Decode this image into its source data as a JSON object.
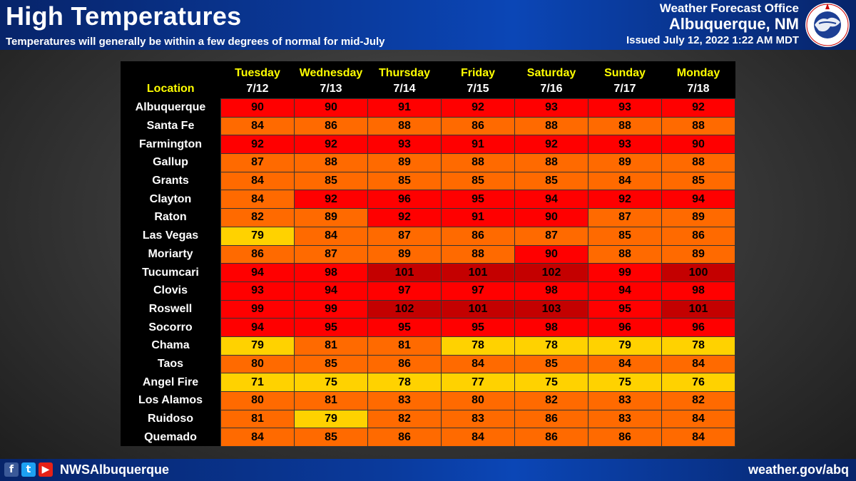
{
  "header": {
    "title": "High Temperatures",
    "subtitle": "Temperatures will generally be within a few degrees of normal for mid-July",
    "office_line1": "Weather Forecast Office",
    "office_line2": "Albuquerque, NM",
    "issued": "Issued July 12, 2022 1:22 AM MDT",
    "logo_text": "NATIONAL WEATHER SERVICE"
  },
  "footer": {
    "handle": "NWSAlbuquerque",
    "website": "weather.gov/abq"
  },
  "colors": {
    "yellow": "#ffd200",
    "orange": "#ff6a00",
    "red": "#ff0000",
    "dark_red": "#c40000"
  },
  "table": {
    "location_header": "Location",
    "days": [
      {
        "day": "Tuesday",
        "date": "7/12"
      },
      {
        "day": "Wednesday",
        "date": "7/13"
      },
      {
        "day": "Thursday",
        "date": "7/14"
      },
      {
        "day": "Friday",
        "date": "7/15"
      },
      {
        "day": "Saturday",
        "date": "7/16"
      },
      {
        "day": "Sunday",
        "date": "7/17"
      },
      {
        "day": "Monday",
        "date": "7/18"
      }
    ],
    "rows": [
      {
        "location": "Albuquerque",
        "temps": [
          90,
          90,
          91,
          92,
          93,
          93,
          92
        ]
      },
      {
        "location": "Santa Fe",
        "temps": [
          84,
          86,
          88,
          86,
          88,
          88,
          88
        ]
      },
      {
        "location": "Farmington",
        "temps": [
          92,
          92,
          93,
          91,
          92,
          93,
          90
        ]
      },
      {
        "location": "Gallup",
        "temps": [
          87,
          88,
          89,
          88,
          88,
          89,
          88
        ]
      },
      {
        "location": "Grants",
        "temps": [
          84,
          85,
          85,
          85,
          85,
          84,
          85
        ]
      },
      {
        "location": "Clayton",
        "temps": [
          84,
          92,
          96,
          95,
          94,
          92,
          94
        ]
      },
      {
        "location": "Raton",
        "temps": [
          82,
          89,
          92,
          91,
          90,
          87,
          89
        ]
      },
      {
        "location": "Las Vegas",
        "temps": [
          79,
          84,
          87,
          86,
          87,
          85,
          86
        ]
      },
      {
        "location": "Moriarty",
        "temps": [
          86,
          87,
          89,
          88,
          90,
          88,
          89
        ]
      },
      {
        "location": "Tucumcari",
        "temps": [
          94,
          98,
          101,
          101,
          102,
          99,
          100
        ]
      },
      {
        "location": "Clovis",
        "temps": [
          93,
          94,
          97,
          97,
          98,
          94,
          98
        ]
      },
      {
        "location": "Roswell",
        "temps": [
          99,
          99,
          102,
          101,
          103,
          95,
          101
        ]
      },
      {
        "location": "Socorro",
        "temps": [
          94,
          95,
          95,
          95,
          98,
          96,
          96
        ]
      },
      {
        "location": "Chama",
        "temps": [
          79,
          81,
          81,
          78,
          78,
          79,
          78
        ]
      },
      {
        "location": "Taos",
        "temps": [
          80,
          85,
          86,
          84,
          85,
          84,
          84
        ]
      },
      {
        "location": "Angel Fire",
        "temps": [
          71,
          75,
          78,
          77,
          75,
          75,
          76
        ]
      },
      {
        "location": "Los Alamos",
        "temps": [
          80,
          81,
          83,
          80,
          82,
          83,
          82
        ]
      },
      {
        "location": "Ruidoso",
        "temps": [
          81,
          79,
          82,
          83,
          86,
          83,
          84
        ]
      },
      {
        "location": "Quemado",
        "temps": [
          84,
          85,
          86,
          84,
          86,
          86,
          84
        ]
      }
    ]
  }
}
